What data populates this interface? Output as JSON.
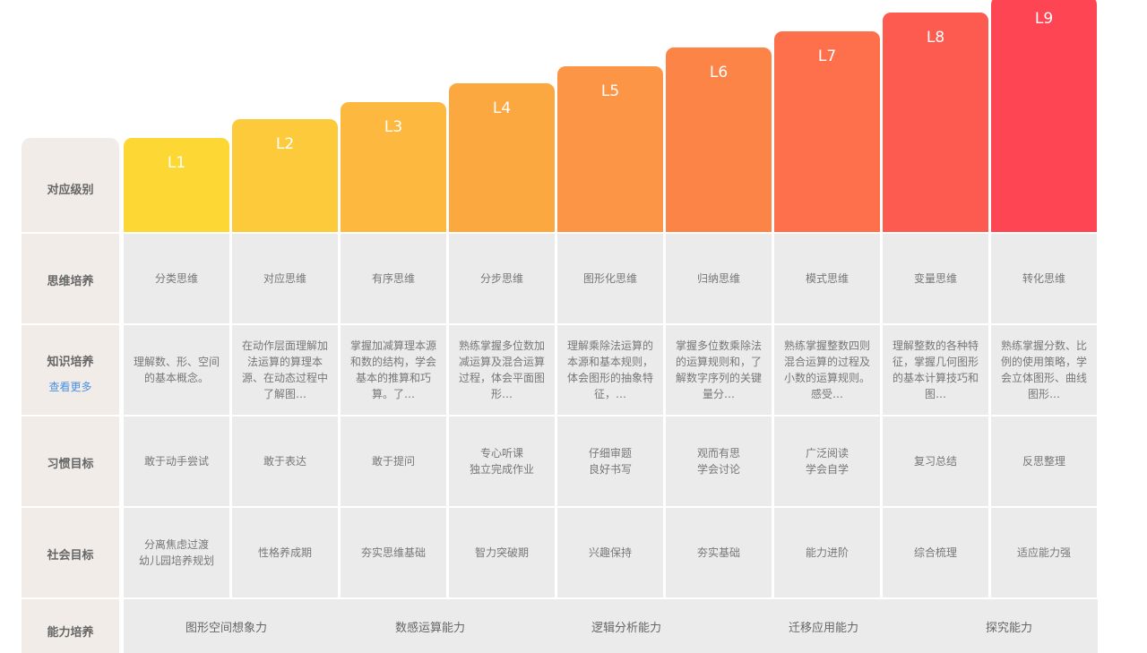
{
  "header_label": "对应级别",
  "levels": [
    {
      "name": "L1",
      "color": "#fdd835"
    },
    {
      "name": "L2",
      "color": "#fcca3b"
    },
    {
      "name": "L3",
      "color": "#fcb83f"
    },
    {
      "name": "L4",
      "color": "#fca841"
    },
    {
      "name": "L5",
      "color": "#fd9546"
    },
    {
      "name": "L6",
      "color": "#fd8447"
    },
    {
      "name": "L7",
      "color": "#fe6f4b"
    },
    {
      "name": "L8",
      "color": "#fe5b50"
    },
    {
      "name": "L9",
      "color": "#fe4553"
    }
  ],
  "rows": [
    {
      "label": "思维培养",
      "cells": [
        "分类思维",
        "对应思维",
        "有序思维",
        "分步思维",
        "图形化思维",
        "归纳思维",
        "模式思维",
        "变量思维",
        "转化思维"
      ]
    },
    {
      "label": "知识培养",
      "more": "查看更多",
      "cells": [
        "理解数、形、空间的基本概念。",
        "在动作层面理解加法运算的算理本源、在动态过程中了解图…",
        "掌握加减算理本源和数的结构，学会基本的推算和巧算。了…",
        "熟练掌握多位数加减运算及混合运算过程，体会平面图形…",
        "理解乘除法运算的本源和基本规则，体会图形的抽象特征，…",
        "掌握多位数乘除法的运算规则和，了解数字序列的关键量分…",
        "熟练掌握整数四则混合运算的过程及小数的运算规则。感受…",
        "理解整数的各种特征，掌握几何图形的基本计算技巧和图…",
        "熟练掌握分数、比例的使用策略，学会立体图形、曲线图形…"
      ]
    },
    {
      "label": "习惯目标",
      "cells": [
        "敢于动手尝试",
        "敢于表达",
        "敢于提问",
        "专心听课\n独立完成作业",
        "仔细审题\n良好书写",
        "观而有思\n学会讨论",
        "广泛阅读\n学会自学",
        "复习总结",
        "反思整理"
      ]
    },
    {
      "label": "社会目标",
      "cells": [
        "分离焦虑过渡\n幼儿园培养规划",
        "性格养成期",
        "夯实思维基础",
        "智力突破期",
        "兴趣保持",
        "夯实基础",
        "能力进阶",
        "综合梳理",
        "适应能力强"
      ]
    }
  ],
  "ability": {
    "label": "能力培养",
    "items": [
      "图形空间想象力",
      "数感运算能力",
      "逻辑分析能力",
      "迁移应用能力",
      "探究能力"
    ]
  }
}
